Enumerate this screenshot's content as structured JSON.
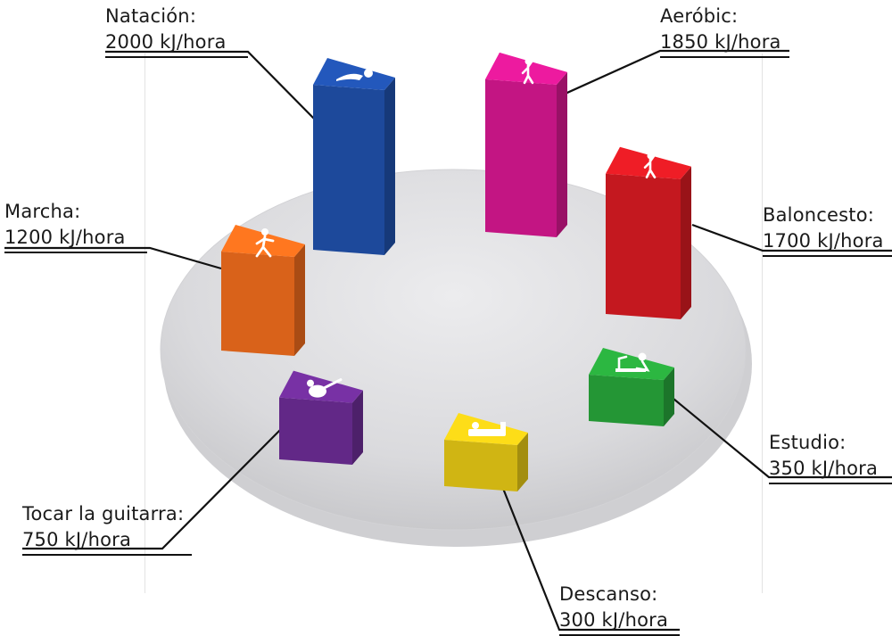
{
  "chart_data": {
    "type": "bar",
    "title": "",
    "unit": "kJ/hora",
    "categories": [
      "Natación",
      "Aeróbic",
      "Baloncesto",
      "Estudio",
      "Descanso",
      "Tocar la guitarra",
      "Marcha"
    ],
    "values": [
      2000,
      1850,
      1700,
      350,
      300,
      750,
      1200
    ],
    "labels": [
      {
        "name": "Natación:",
        "value": "2000 kJ/hora",
        "color": "#1f4fa8",
        "icon": "swimmer-icon"
      },
      {
        "name": "Aeróbic:",
        "value": "1850 kJ/hora",
        "color": "#d4178e",
        "icon": "aerobics-icon"
      },
      {
        "name": "Baloncesto:",
        "value": "1700 kJ/hora",
        "color": "#d51a22",
        "icon": "basketball-icon"
      },
      {
        "name": "Estudio:",
        "value": "350 kJ/hora",
        "color": "#27a33a",
        "icon": "studying-icon"
      },
      {
        "name": "Descanso:",
        "value": "300 kJ/hora",
        "color": "#e2c515",
        "icon": "sleeping-icon"
      },
      {
        "name": "Tocar la guitarra:",
        "value": "750 kJ/hora",
        "color": "#6b2c93",
        "icon": "guitar-icon"
      },
      {
        "name": "Marcha:",
        "value": "1200 kJ/hora",
        "color": "#ec6a1c",
        "icon": "walker-icon"
      }
    ]
  }
}
